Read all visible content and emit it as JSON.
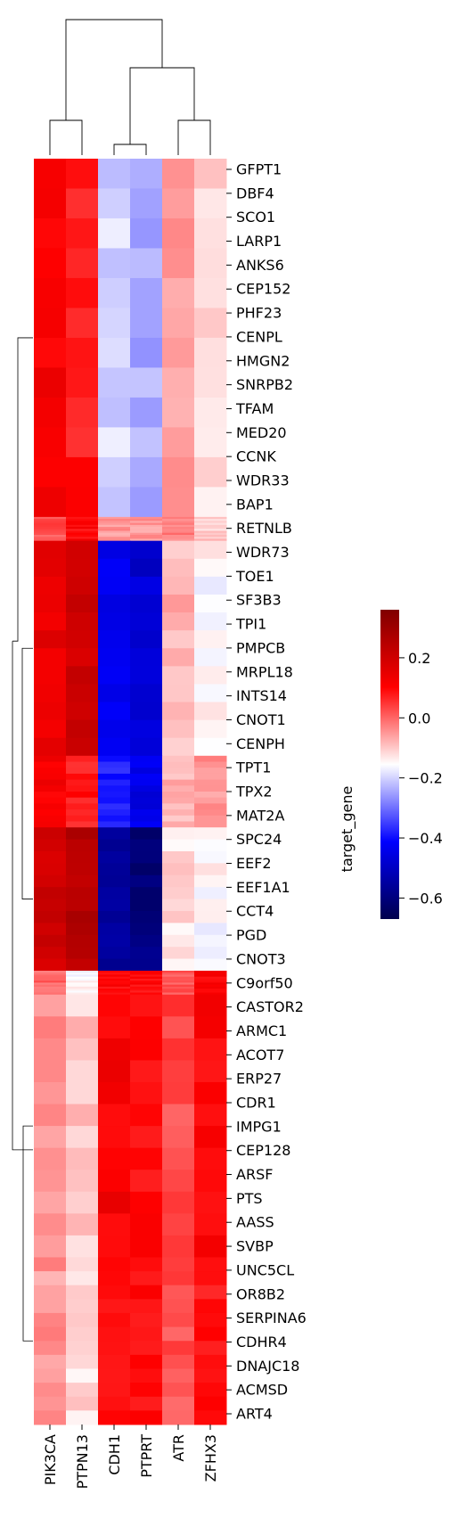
{
  "chart_data": {
    "type": "heatmap",
    "title": "",
    "columns": [
      "PIK3CA",
      "PTPN13",
      "CDH1",
      "PTPRT",
      "ATR",
      "ZFHX3"
    ],
    "row_tick_labels": [
      "GFPT1",
      "DBF4",
      "SCO1",
      "LARP1",
      "ANKS6",
      "CEP152",
      "PHF23",
      "CENPL",
      "HMGN2",
      "SNRPB2",
      "TFAM",
      "MED20",
      "CCNK",
      "WDR33",
      "BAP1",
      "RETNLB",
      "WDR73",
      "TOE1",
      "SF3B3",
      "TPI1",
      "PMPCB",
      "MRPL18",
      "INTS14",
      "CNOT1",
      "CENPH",
      "TPT1",
      "TPX2",
      "MAT2A",
      "SPC24",
      "EEF2",
      "EEF1A1",
      "CCT4",
      "PGD",
      "CNOT3",
      "C9orf50",
      "CASTOR2",
      "ARMC1",
      "ACOT7",
      "ERP27",
      "CDR1",
      "IMPG1",
      "CEP128",
      "ARSF",
      "PTS",
      "AASS",
      "SVBP",
      "UNC5CL",
      "OR8B2",
      "SERPINA6",
      "CDHR4",
      "DNAJC18",
      "ACMSD",
      "ART4"
    ],
    "cluster_blocks": [
      {
        "rows": 15,
        "values": [
          0.12,
          0.08,
          -0.2,
          -0.24,
          -0.05,
          -0.12
        ]
      },
      {
        "rows": 1,
        "values": [
          0.02,
          0.1,
          -0.05,
          -0.05,
          -0.02,
          -0.1
        ]
      },
      {
        "rows": 9,
        "values": [
          0.15,
          0.2,
          -0.45,
          -0.48,
          -0.08,
          -0.15
        ]
      },
      {
        "rows": 3,
        "values": [
          0.12,
          0.08,
          -0.38,
          -0.45,
          -0.08,
          -0.05
        ]
      },
      {
        "rows": 6,
        "values": [
          0.2,
          0.25,
          -0.55,
          -0.6,
          -0.12,
          -0.15
        ]
      },
      {
        "rows": 1,
        "values": [
          0.0,
          -0.15,
          0.1,
          0.1,
          0.02,
          0.1
        ]
      },
      {
        "rows": 11,
        "values": [
          -0.04,
          -0.1,
          0.12,
          0.1,
          0.03,
          0.1
        ]
      },
      {
        "rows": 7,
        "values": [
          -0.05,
          -0.12,
          0.1,
          0.1,
          0.02,
          0.08
        ]
      }
    ],
    "dendrogram_columns": "(PIK3CA,PTPN13),((CDH1,PTPRT),(ATR,ZFHX3))",
    "colormap": "seismic",
    "colorbar": {
      "label": "target_gene",
      "vmin": -0.67,
      "vmax": 0.36,
      "ticks": [
        "0.2",
        "0.0",
        "−0.2",
        "−0.4",
        "−0.6"
      ],
      "tick_values": [
        0.2,
        0.0,
        -0.2,
        -0.4,
        -0.6
      ]
    },
    "colors": {
      "negative": "#00004c",
      "mid": "#ffffff",
      "positive": "#ff0000"
    },
    "grid": false
  }
}
